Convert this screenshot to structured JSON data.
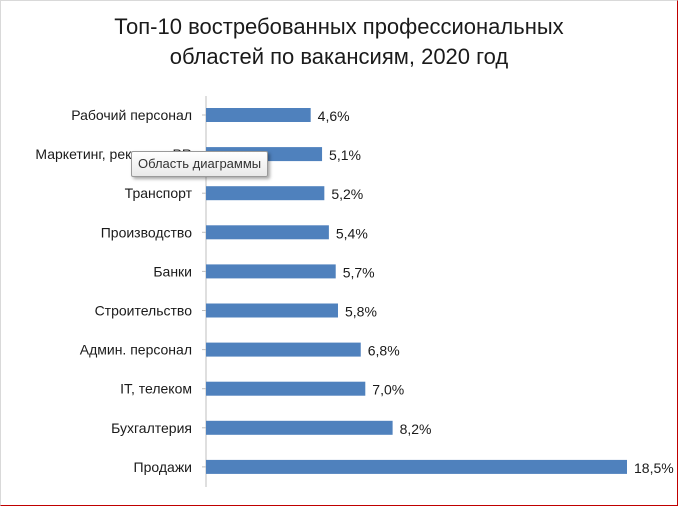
{
  "chart_data": {
    "type": "bar",
    "orientation": "horizontal",
    "title": "Топ-10 востребованных профессиональных областей по вакансиям, 2020 год",
    "title_lines": [
      "Топ-10 востребованных профессиональных",
      "областей по вакансиям, 2020 год"
    ],
    "categories": [
      "Рабочий персонал",
      "Маркетинг, реклама, PR",
      "Транспорт",
      "Производство",
      "Банки",
      "Строительство",
      "Админ. персонал",
      "IT, телеком",
      "Бухгалтерия",
      "Продажи"
    ],
    "values": [
      4.6,
      5.1,
      5.2,
      5.4,
      5.7,
      5.8,
      6.8,
      7.0,
      8.2,
      18.5
    ],
    "data_labels": [
      "4,6%",
      "5,1%",
      "5,2%",
      "5,4%",
      "5,7%",
      "5,8%",
      "6,8%",
      "7,0%",
      "8,2%",
      "18,5%"
    ],
    "xlim": [
      0,
      18.5
    ],
    "grid": false,
    "legend": "none",
    "bar_color": "#4f81bd"
  },
  "tooltip": {
    "text": "Область диаграммы"
  },
  "colors": {
    "frame_border": "#c00000",
    "axis": "#bfbfbf",
    "text": "#1a1a1a"
  }
}
